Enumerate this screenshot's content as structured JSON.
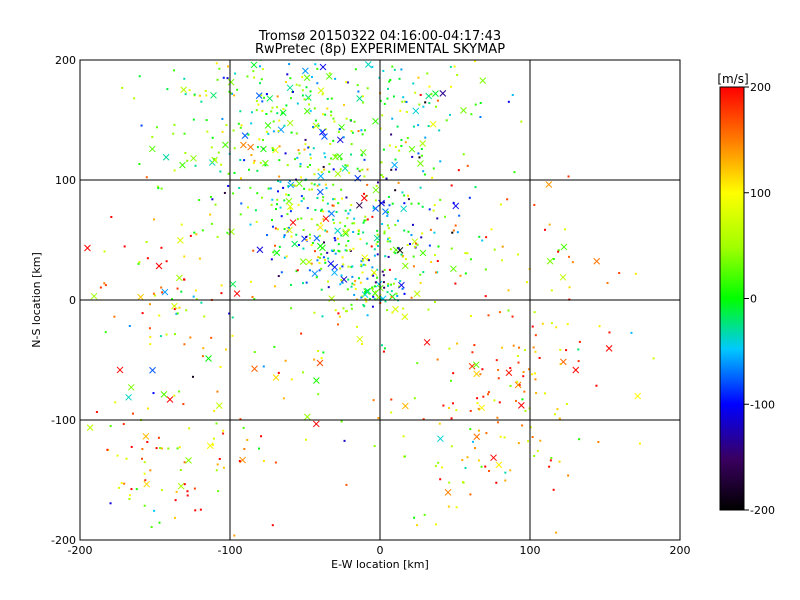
{
  "chart_data": {
    "type": "scatter",
    "title": "Tromsø 20150322 04:16:00-04:17:43",
    "subtitle": "RwPretec (8p) EXPERIMENTAL SKYMAP",
    "xlabel": "E-W location [km]",
    "ylabel": "N-S location [km]",
    "xlim": [
      -200,
      200
    ],
    "ylim": [
      -200,
      200
    ],
    "xticks": [
      "-200",
      "-100",
      "0",
      "100",
      "200"
    ],
    "yticks": [
      "-200",
      "-100",
      "0",
      "100",
      "200"
    ],
    "grid": true,
    "colorbar": {
      "label": "[m/s]",
      "range": [
        -200,
        200
      ],
      "ticks": [
        "-200",
        "-100",
        "0",
        "100",
        "200"
      ],
      "colormap": "rainbow",
      "placement": "right"
    },
    "markers": {
      "x": "cross",
      "dot": "small"
    },
    "clusters": [
      {
        "cx": -75,
        "cy": 155,
        "sx": 45,
        "sy": 35,
        "n": 220,
        "vmean": 20,
        "vspread": 60
      },
      {
        "cx": 5,
        "cy": 160,
        "sx": 35,
        "sy": 30,
        "n": 120,
        "vmean": 0,
        "vspread": 70
      },
      {
        "cx": -45,
        "cy": 90,
        "sx": 35,
        "sy": 30,
        "n": 200,
        "vmean": 10,
        "vspread": 80
      },
      {
        "cx": -20,
        "cy": 40,
        "sx": 30,
        "sy": 25,
        "n": 200,
        "vmean": 0,
        "vspread": 80
      },
      {
        "cx": 0,
        "cy": 5,
        "sx": 15,
        "sy": 10,
        "n": 60,
        "vmean": 20,
        "vspread": 70
      },
      {
        "cx": -145,
        "cy": 10,
        "sx": 30,
        "sy": 25,
        "n": 60,
        "vmean": 130,
        "vspread": 90
      },
      {
        "cx": -140,
        "cy": -140,
        "sx": 30,
        "sy": 30,
        "n": 80,
        "vmean": 120,
        "vspread": 90
      },
      {
        "cx": 90,
        "cy": -60,
        "sx": 30,
        "sy": 30,
        "n": 80,
        "vmean": 150,
        "vspread": 60
      },
      {
        "cx": 60,
        "cy": -120,
        "sx": 35,
        "sy": 35,
        "n": 70,
        "vmean": 120,
        "vspread": 90
      },
      {
        "cx": -80,
        "cy": -60,
        "sx": 60,
        "sy": 60,
        "n": 80,
        "vmean": 100,
        "vspread": 100
      },
      {
        "cx": 110,
        "cy": 20,
        "sx": 30,
        "sy": 40,
        "n": 40,
        "vmean": 140,
        "vspread": 80
      },
      {
        "cx": 40,
        "cy": 60,
        "sx": 40,
        "sy": 40,
        "n": 60,
        "vmean": 80,
        "vspread": 110
      }
    ]
  }
}
